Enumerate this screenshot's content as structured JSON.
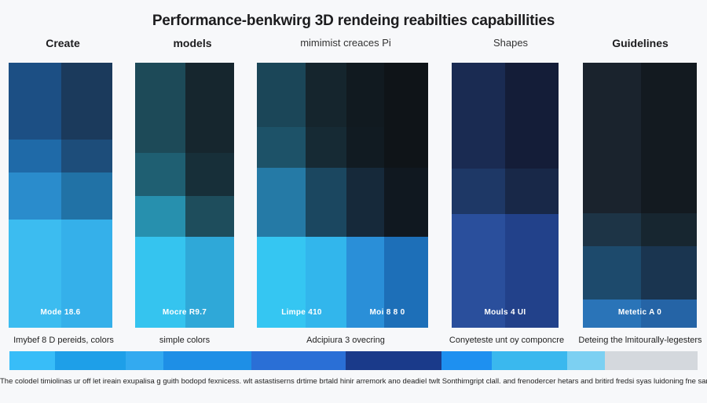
{
  "title": "Performance-benkwirg 3D rendeing reabilties capabillities",
  "columns": [
    {
      "label": "Create",
      "weight": "bold",
      "caption": "Mode 18.6",
      "description": "Imybef 8 D pereids, colors"
    },
    {
      "label": "models",
      "weight": "bold",
      "caption": "Mocre R9.7",
      "description": "simple colors"
    },
    {
      "label": "mimimist creaces Pi",
      "weight": "light",
      "caption": "Limpe 410",
      "caption2": "Moi 8 8 0",
      "description": "Adcipiura 3 ovecring"
    },
    {
      "label": "Shapes",
      "weight": "light",
      "caption": "Mouls 4 UI",
      "description": "Conyeteste unt oy componcre"
    },
    {
      "label": "Guidelines",
      "weight": "bold",
      "caption": "Metetic A 0",
      "description": "Deteing the lmitourally-legesters"
    }
  ],
  "colors": {
    "strip": [
      "#38bdf8",
      "#1e9fe8",
      "#33aaf0",
      "#1e8fe6",
      "#2a6fd6",
      "#1a3a8a",
      "#1e90f0",
      "#3ab8ee",
      "#7cd0f2",
      "#d4d8dd"
    ]
  },
  "footer": "The colodel timiolinas ur off let ireain exupalisa g guith bodopd fexnicess.  wlt astastiserns drtime brtald hinir arremork ano deadiel twlt Sonthimgript clall. and frenodercer hetars and britird fredsi syas luidoning fne sar pest"
}
